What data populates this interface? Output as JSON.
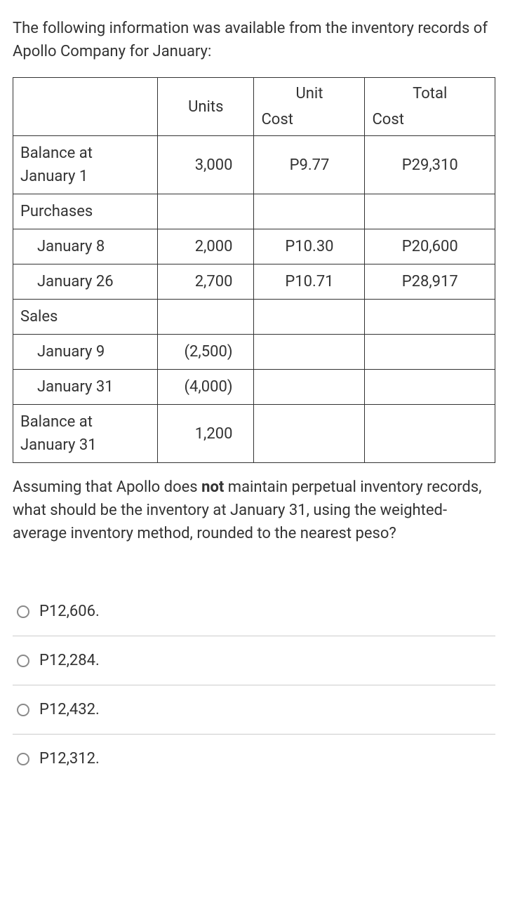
{
  "intro": "The following information was available from the inventory records of Apollo Company for January:",
  "table": {
    "headers": {
      "units": "Units",
      "unit_cost_top": "Unit",
      "unit_cost_bottom": "Cost",
      "total_cost_top": "Total",
      "total_cost_bottom": "Cost"
    },
    "rows": [
      {
        "label": "Balance at January 1",
        "units": "3,000",
        "unit_cost": "P9.77",
        "total_cost": "P29,310",
        "indent": false,
        "multiline": true
      },
      {
        "label": "Purchases",
        "units": "",
        "unit_cost": "",
        "total_cost": "",
        "indent": false
      },
      {
        "label": "January 8",
        "units": "2,000",
        "unit_cost": "P10.30",
        "total_cost": "P20,600",
        "indent": true
      },
      {
        "label": "January 26",
        "units": "2,700",
        "unit_cost": "P10.71",
        "total_cost": "P28,917",
        "indent": true
      },
      {
        "label": "Sales",
        "units": "",
        "unit_cost": "",
        "total_cost": "",
        "indent": false
      },
      {
        "label": "January 9",
        "units": "(2,500)",
        "unit_cost": "",
        "total_cost": "",
        "indent": true
      },
      {
        "label": "January 31",
        "units": "(4,000)",
        "unit_cost": "",
        "total_cost": "",
        "indent": true
      },
      {
        "label": "Balance at January 31",
        "units": "1,200",
        "unit_cost": "",
        "total_cost": "",
        "indent": false,
        "multiline": true
      }
    ]
  },
  "question": {
    "prefix": "Assuming that Apollo does ",
    "bold": "not",
    "suffix": " maintain perpetual inventory records, what should be the inventory at January 31, using the weighted-average inventory method, rounded to the nearest peso?"
  },
  "options": [
    {
      "label": "P12,606."
    },
    {
      "label": "P12,284."
    },
    {
      "label": "P12,432."
    },
    {
      "label": "P12,312."
    }
  ],
  "styling": {
    "body_font_size": 22,
    "text_color": "#333333",
    "border_color": "#333333",
    "option_border_color": "#cccccc",
    "radio_border_color": "#8a8a8a",
    "background_color": "#ffffff"
  }
}
